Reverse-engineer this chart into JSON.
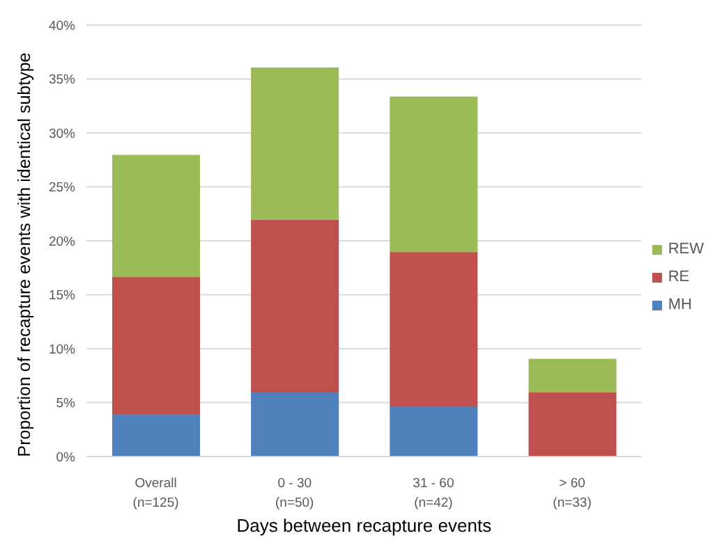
{
  "chart_data": {
    "type": "bar",
    "stacked": true,
    "xlabel": "Days between recapture events",
    "ylabel": "Proportion of recapture events with identical subtype",
    "categories": [
      "Overall\n(n=125)",
      "0 - 30\n(n=50)",
      "31 - 60\n(n=42)",
      "> 60\n(n=33)"
    ],
    "series": [
      {
        "name": "MH",
        "color": "#4f81bd",
        "values": [
          4.0,
          6.0,
          4.7,
          0
        ]
      },
      {
        "name": "RE",
        "color": "#c0504d",
        "values": [
          12.7,
          16.0,
          14.3,
          6.0
        ]
      },
      {
        "name": "REW",
        "color": "#9bbb59",
        "values": [
          11.2,
          14.0,
          14.3,
          3.0
        ]
      }
    ],
    "ylim": [
      0,
      40
    ],
    "yticks": [
      {
        "value": 0,
        "label": "0%"
      },
      {
        "value": 5,
        "label": "5%"
      },
      {
        "value": 10,
        "label": "10%"
      },
      {
        "value": 15,
        "label": "15%"
      },
      {
        "value": 20,
        "label": "20%"
      },
      {
        "value": 25,
        "label": "25%"
      },
      {
        "value": 30,
        "label": "30%"
      },
      {
        "value": 35,
        "label": "35%"
      },
      {
        "value": 40,
        "label": "40%"
      }
    ],
    "grid": "y",
    "legend": "right"
  }
}
